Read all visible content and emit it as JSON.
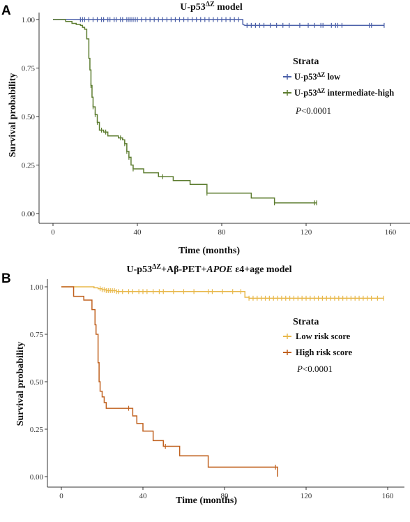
{
  "chart_data": [
    {
      "type": "line",
      "panel_label": "A",
      "title_main": "U-p53",
      "title_sup": "ΔZ",
      "title_rest": " model",
      "xlabel": "Time (months)",
      "ylabel": "Survival probability",
      "xlim": [
        0,
        160
      ],
      "ylim": [
        0,
        1
      ],
      "xticks": [
        0,
        40,
        80,
        120,
        160
      ],
      "yticks": [
        0.0,
        0.25,
        0.5,
        0.75,
        1.0
      ],
      "ytick_labels": [
        "0.00",
        "0.25",
        "0.50",
        "0.75",
        "1.00"
      ],
      "legend_title": "Strata",
      "legend_position": "right",
      "p_label_italic": "P",
      "p_label_rest": "<0.0001",
      "series": [
        {
          "label_main": "U-p53",
          "label_sup": "ΔZ",
          "label_rest": " low",
          "color": "#4a5fa8",
          "steps": [
            [
              0,
              1.0
            ],
            [
              90,
              1.0
            ],
            [
              90,
              0.975
            ],
            [
              91,
              0.97
            ],
            [
              157,
              0.97
            ]
          ],
          "censor": [
            13,
            14,
            15,
            17,
            19,
            21,
            23,
            24,
            26,
            27,
            29,
            30,
            32,
            33,
            35,
            36,
            37,
            38,
            39,
            40,
            42,
            44,
            46,
            48,
            50,
            52,
            54,
            56,
            58,
            60,
            62,
            64,
            66,
            68,
            70,
            72,
            74,
            76,
            78,
            80,
            82,
            84,
            86,
            88,
            92,
            94,
            96,
            98,
            100,
            103,
            106,
            109,
            112,
            117,
            121,
            124,
            127,
            128,
            132,
            134,
            135,
            137,
            150,
            151,
            157
          ]
        },
        {
          "label_main": "U-p53",
          "label_sup": "ΔZ",
          "label_rest": " intermediate-high",
          "color": "#5c7c2f",
          "steps": [
            [
              0,
              1.0
            ],
            [
              6,
              1.0
            ],
            [
              6,
              0.99
            ],
            [
              9,
              0.99
            ],
            [
              9,
              0.98
            ],
            [
              11,
              0.98
            ],
            [
              11,
              0.975
            ],
            [
              13,
              0.975
            ],
            [
              13,
              0.97
            ],
            [
              14,
              0.97
            ],
            [
              14,
              0.96
            ],
            [
              15,
              0.96
            ],
            [
              15,
              0.95
            ],
            [
              16,
              0.95
            ],
            [
              16,
              0.9
            ],
            [
              17,
              0.9
            ],
            [
              17,
              0.8
            ],
            [
              17.5,
              0.8
            ],
            [
              17.5,
              0.74
            ],
            [
              18,
              0.74
            ],
            [
              18,
              0.66
            ],
            [
              18.5,
              0.66
            ],
            [
              18.5,
              0.6
            ],
            [
              19,
              0.6
            ],
            [
              19,
              0.55
            ],
            [
              20,
              0.55
            ],
            [
              20,
              0.51
            ],
            [
              21,
              0.51
            ],
            [
              21,
              0.47
            ],
            [
              22,
              0.47
            ],
            [
              22,
              0.43
            ],
            [
              24,
              0.43
            ],
            [
              24,
              0.42
            ],
            [
              26,
              0.42
            ],
            [
              26,
              0.4
            ],
            [
              31,
              0.4
            ],
            [
              31,
              0.39
            ],
            [
              33,
              0.39
            ],
            [
              33,
              0.38
            ],
            [
              34,
              0.38
            ],
            [
              34,
              0.36
            ],
            [
              35,
              0.36
            ],
            [
              35,
              0.32
            ],
            [
              36,
              0.32
            ],
            [
              36,
              0.29
            ],
            [
              37,
              0.29
            ],
            [
              37,
              0.25
            ],
            [
              38,
              0.25
            ],
            [
              38,
              0.23
            ],
            [
              43,
              0.23
            ],
            [
              43,
              0.21
            ],
            [
              50,
              0.21
            ],
            [
              50,
              0.19
            ],
            [
              57,
              0.19
            ],
            [
              57,
              0.17
            ],
            [
              65,
              0.17
            ],
            [
              65,
              0.15
            ],
            [
              73,
              0.15
            ],
            [
              73,
              0.105
            ],
            [
              94,
              0.105
            ],
            [
              94,
              0.08
            ],
            [
              105,
              0.08
            ],
            [
              105,
              0.055
            ],
            [
              125,
              0.055
            ]
          ],
          "censor": [
            18,
            19,
            20,
            21,
            23,
            25,
            32,
            34,
            35,
            36,
            38,
            52,
            73,
            105,
            124,
            125
          ]
        }
      ]
    },
    {
      "type": "line",
      "panel_label": "B",
      "title_main": "U-p53",
      "title_sup": "ΔZ",
      "title_rest": "+Aβ-PET+",
      "title_italic": "APOE",
      "title_end": " ε4+age model",
      "xlabel": "Time (months)",
      "ylabel": "Survival probability",
      "xlim": [
        0,
        160
      ],
      "ylim": [
        0,
        1
      ],
      "xticks": [
        0,
        40,
        80,
        120,
        160
      ],
      "yticks": [
        0.0,
        0.25,
        0.5,
        0.75,
        1.0
      ],
      "ytick_labels": [
        "0.00",
        "0.25",
        "0.50",
        "0.75",
        "1.00"
      ],
      "legend_title": "Strata",
      "legend_position": "right",
      "p_label_italic": "P",
      "p_label_rest": "<0.0001",
      "series": [
        {
          "label_main": "Low risk score",
          "label_sup": "",
          "label_rest": "",
          "color": "#e8b84a",
          "steps": [
            [
              0,
              1.0
            ],
            [
              16,
              1.0
            ],
            [
              16,
              0.995
            ],
            [
              18,
              0.995
            ],
            [
              18,
              0.99
            ],
            [
              20,
              0.99
            ],
            [
              20,
              0.985
            ],
            [
              22,
              0.985
            ],
            [
              22,
              0.98
            ],
            [
              27,
              0.98
            ],
            [
              27,
              0.975
            ],
            [
              90,
              0.975
            ],
            [
              90,
              0.945
            ],
            [
              92,
              0.945
            ],
            [
              92,
              0.94
            ],
            [
              158,
              0.94
            ]
          ],
          "censor": [
            19,
            20,
            21,
            22,
            23,
            24,
            25,
            26,
            27,
            28,
            30,
            33,
            35,
            38,
            40,
            42,
            45,
            48,
            50,
            55,
            60,
            65,
            72,
            74,
            79,
            84,
            88,
            92,
            94,
            96,
            98,
            100,
            102,
            104,
            106,
            108,
            110,
            112,
            114,
            116,
            118,
            120,
            122,
            124,
            126,
            128,
            130,
            132,
            134,
            136,
            138,
            140,
            142,
            144,
            146,
            148,
            150,
            152,
            155,
            158
          ]
        },
        {
          "label_main": "High risk score",
          "label_sup": "",
          "label_rest": "",
          "color": "#c0611f",
          "steps": [
            [
              0,
              1.0
            ],
            [
              6,
              1.0
            ],
            [
              6,
              0.95
            ],
            [
              11,
              0.95
            ],
            [
              11,
              0.93
            ],
            [
              15,
              0.93
            ],
            [
              15,
              0.88
            ],
            [
              16.5,
              0.88
            ],
            [
              16.5,
              0.8
            ],
            [
              17,
              0.8
            ],
            [
              17,
              0.75
            ],
            [
              18,
              0.75
            ],
            [
              18,
              0.6
            ],
            [
              18.5,
              0.6
            ],
            [
              18.5,
              0.5
            ],
            [
              19,
              0.5
            ],
            [
              19,
              0.45
            ],
            [
              20,
              0.45
            ],
            [
              20,
              0.42
            ],
            [
              21,
              0.42
            ],
            [
              21,
              0.39
            ],
            [
              22,
              0.39
            ],
            [
              22,
              0.36
            ],
            [
              35,
              0.36
            ],
            [
              35,
              0.32
            ],
            [
              37,
              0.32
            ],
            [
              37,
              0.28
            ],
            [
              40,
              0.28
            ],
            [
              40,
              0.24
            ],
            [
              45,
              0.24
            ],
            [
              45,
              0.19
            ],
            [
              50,
              0.19
            ],
            [
              50,
              0.16
            ],
            [
              58,
              0.16
            ],
            [
              58,
              0.11
            ],
            [
              72,
              0.11
            ],
            [
              72,
              0.05
            ],
            [
              106,
              0.05
            ],
            [
              106,
              0.0
            ]
          ],
          "censor": [
            33,
            51,
            105
          ]
        }
      ]
    }
  ]
}
